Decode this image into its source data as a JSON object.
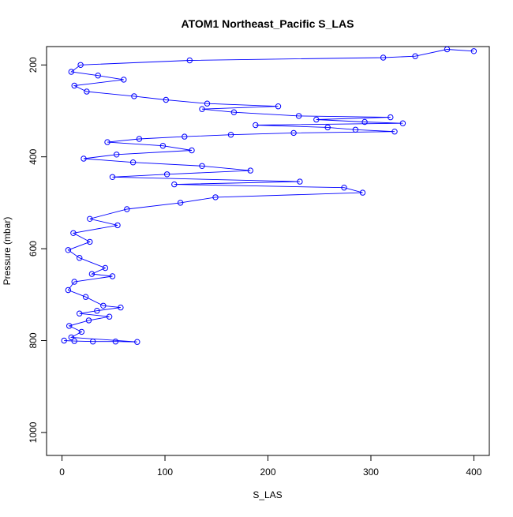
{
  "chart_data": {
    "type": "scatter",
    "title": "ATOM1 Northeast_Pacific S_LAS",
    "xlabel": "S_LAS",
    "ylabel": "Pressure (mbar)",
    "xlim": [
      -15,
      415
    ],
    "ylim": [
      1050,
      160
    ],
    "y_inverted": true,
    "x_ticks": [
      0,
      100,
      200,
      300,
      400
    ],
    "y_ticks": [
      200,
      400,
      600,
      800,
      1000
    ],
    "grid": false,
    "legend": "none",
    "style": {
      "color": "#0000ff",
      "marker": "open-circle",
      "connected": true
    },
    "series": [
      {
        "points": [
          [
            400,
            170
          ],
          [
            374,
            166
          ],
          [
            343,
            181
          ],
          [
            312,
            184
          ],
          [
            124,
            190
          ],
          [
            18,
            200
          ],
          [
            9,
            215
          ],
          [
            35,
            223
          ],
          [
            60,
            232
          ],
          [
            12,
            245
          ],
          [
            24,
            258
          ],
          [
            70,
            268
          ],
          [
            101,
            276
          ],
          [
            141,
            284
          ],
          [
            210,
            290
          ],
          [
            136,
            296
          ],
          [
            167,
            303
          ],
          [
            230,
            311
          ],
          [
            319,
            314
          ],
          [
            247,
            319
          ],
          [
            294,
            324
          ],
          [
            331,
            327
          ],
          [
            188,
            331
          ],
          [
            258,
            336
          ],
          [
            285,
            341
          ],
          [
            323,
            345
          ],
          [
            225,
            348
          ],
          [
            164,
            352
          ],
          [
            119,
            356
          ],
          [
            75,
            361
          ],
          [
            44,
            368
          ],
          [
            98,
            376
          ],
          [
            126,
            386
          ],
          [
            53,
            395
          ],
          [
            21,
            404
          ],
          [
            69,
            412
          ],
          [
            136,
            420
          ],
          [
            183,
            430
          ],
          [
            102,
            438
          ],
          [
            49,
            444
          ],
          [
            231,
            454
          ],
          [
            109,
            460
          ],
          [
            274,
            467
          ],
          [
            292,
            478
          ],
          [
            149,
            488
          ],
          [
            115,
            500
          ],
          [
            63,
            514
          ],
          [
            27,
            535
          ],
          [
            54,
            549
          ],
          [
            11,
            566
          ],
          [
            27,
            585
          ],
          [
            6,
            603
          ],
          [
            17,
            620
          ],
          [
            42,
            642
          ],
          [
            29,
            655
          ],
          [
            49,
            660
          ],
          [
            12,
            672
          ],
          [
            6,
            690
          ],
          [
            23,
            705
          ],
          [
            40,
            724
          ],
          [
            57,
            728
          ],
          [
            34,
            735
          ],
          [
            17,
            741
          ],
          [
            46,
            748
          ],
          [
            26,
            756
          ],
          [
            7,
            768
          ],
          [
            19,
            781
          ],
          [
            9,
            793
          ],
          [
            73,
            803
          ],
          [
            52,
            802
          ],
          [
            30,
            802
          ],
          [
            12,
            801
          ],
          [
            2,
            800
          ]
        ]
      }
    ]
  }
}
